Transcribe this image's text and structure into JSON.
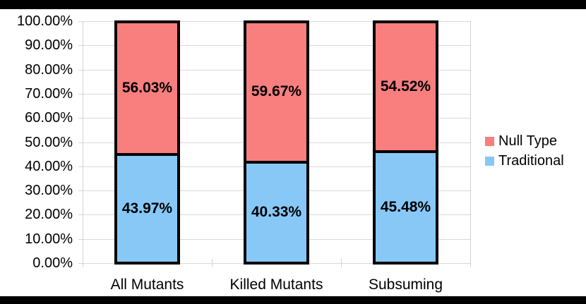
{
  "chart_data": {
    "type": "bar",
    "variant": "stacked",
    "title": "",
    "categories": [
      "All Mutants",
      "Killed Mutants",
      "Subsuming"
    ],
    "series": [
      {
        "name": "Traditional",
        "color": "#87C8F7",
        "values": [
          43.97,
          40.33,
          45.48
        ],
        "labels": [
          "43.97%",
          "40.33%",
          "45.48%"
        ]
      },
      {
        "name": "Null Type",
        "color": "#F97E7E",
        "values": [
          56.03,
          59.67,
          54.52
        ],
        "labels": [
          "56.03%",
          "59.67%",
          "54.52%"
        ]
      }
    ],
    "ylim": [
      0,
      100
    ],
    "y_tick_values": [
      0,
      10,
      20,
      30,
      40,
      50,
      60,
      70,
      80,
      90,
      100
    ],
    "y_tick_labels": [
      "0.00%",
      "10.00%",
      "20.00%",
      "30.00%",
      "40.00%",
      "50.00%",
      "60.00%",
      "70.00%",
      "80.00%",
      "90.00%",
      "100.00%"
    ],
    "grid": "horizontal",
    "legend_position": "right",
    "legend": [
      {
        "label": "Null Type",
        "color": "#F97E7E"
      },
      {
        "label": "Traditional",
        "color": "#87C8F7"
      }
    ],
    "colors": {
      "bar_border": "#000000",
      "gridline": "#d9d9d9",
      "background": "#ffffff",
      "letterbox": "#000000",
      "text": "#000000"
    }
  }
}
